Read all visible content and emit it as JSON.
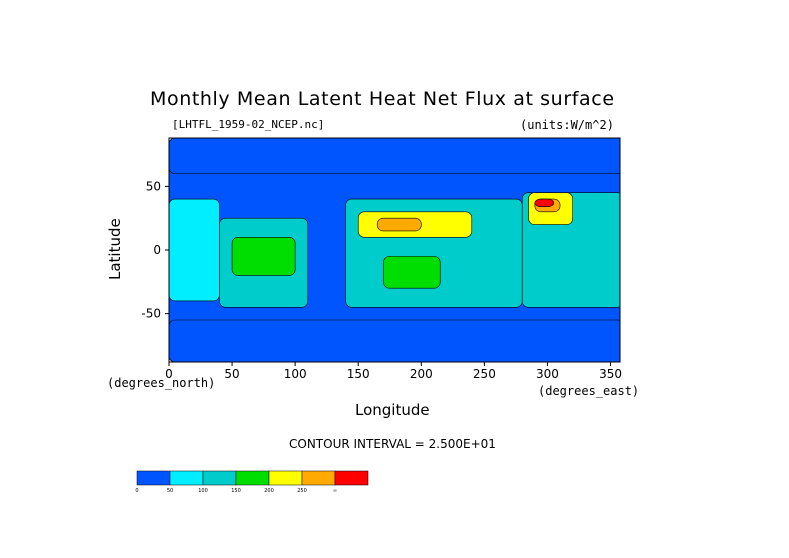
{
  "chart_data": {
    "type": "heatmap",
    "title": "Monthly Mean Latent Heat Net Flux at surface",
    "file_label": "[LHTFL_1959-02_NCEP.nc]",
    "units_label": "(units:W/m^2)",
    "xlabel": "Longitude",
    "ylabel": "Latitude",
    "x_unit": "(degrees_north)",
    "x_unit_east": "(degrees_east)",
    "xlim": [
      0,
      357.5
    ],
    "ylim": [
      -88,
      88
    ],
    "x_ticks": [
      "0",
      "50",
      "100",
      "150",
      "200",
      "250",
      "300",
      "350"
    ],
    "x_tick_values": [
      0,
      50,
      100,
      150,
      200,
      250,
      300,
      350
    ],
    "y_ticks": [
      "50",
      "0",
      "-50"
    ],
    "y_tick_values": [
      50,
      0,
      -50
    ],
    "contour_interval": "CONTOUR INTERVAL = 2.500E+01",
    "colorbar": {
      "boundaries": [
        "0",
        "50",
        "100",
        "150",
        "200",
        "250",
        "∞"
      ],
      "colors": [
        "#0055ff",
        "#00eeff",
        "#00cccc",
        "#00dd00",
        "#ffff00",
        "#ffaa00",
        "#ff0000"
      ]
    },
    "regions": [
      {
        "lon": [
          0,
          360
        ],
        "lat": [
          -88,
          88
        ],
        "level": 0
      },
      {
        "lon": [
          0,
          40
        ],
        "lat": [
          -40,
          40
        ],
        "level": 1
      },
      {
        "lon": [
          40,
          110
        ],
        "lat": [
          -45,
          25
        ],
        "level": 2
      },
      {
        "lon": [
          140,
          280
        ],
        "lat": [
          -45,
          40
        ],
        "level": 2
      },
      {
        "lon": [
          280,
          360
        ],
        "lat": [
          -45,
          45
        ],
        "level": 2
      },
      {
        "lon": [
          50,
          100
        ],
        "lat": [
          -20,
          10
        ],
        "level": 3
      },
      {
        "lon": [
          150,
          240
        ],
        "lat": [
          10,
          30
        ],
        "level": 4
      },
      {
        "lon": [
          165,
          200
        ],
        "lat": [
          15,
          25
        ],
        "level": 5
      },
      {
        "lon": [
          170,
          215
        ],
        "lat": [
          -30,
          -5
        ],
        "level": 3
      },
      {
        "lon": [
          285,
          320
        ],
        "lat": [
          20,
          45
        ],
        "level": 4
      },
      {
        "lon": [
          290,
          310
        ],
        "lat": [
          30,
          40
        ],
        "level": 5
      },
      {
        "lon": [
          290,
          305
        ],
        "lat": [
          34,
          40
        ],
        "level": 6
      },
      {
        "lon": [
          0,
          360
        ],
        "lat": [
          -88,
          -55
        ],
        "level": 0
      },
      {
        "lon": [
          0,
          360
        ],
        "lat": [
          60,
          88
        ],
        "level": 0
      }
    ],
    "grid": false
  }
}
